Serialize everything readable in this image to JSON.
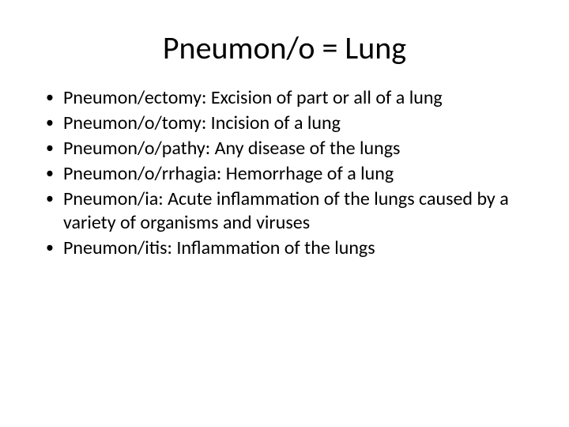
{
  "slide": {
    "title": "Pneumon/o = Lung",
    "bullets": [
      "Pneumon/ectomy: Excision of part or all of a lung",
      "Pneumon/o/tomy: Incision of a lung",
      "Pneumon/o/pathy: Any disease of the lungs",
      "Pneumon/o/rrhagia: Hemorrhage of a lung",
      "Pneumon/ia: Acute inflammation of the lungs caused by a variety of organisms and viruses",
      "Pneumon/itis: Inflammation of the lungs"
    ]
  },
  "style": {
    "background_color": "#ffffff",
    "text_color": "#000000",
    "title_fontsize": 40,
    "body_fontsize": 24,
    "font_family": "Calibri"
  }
}
